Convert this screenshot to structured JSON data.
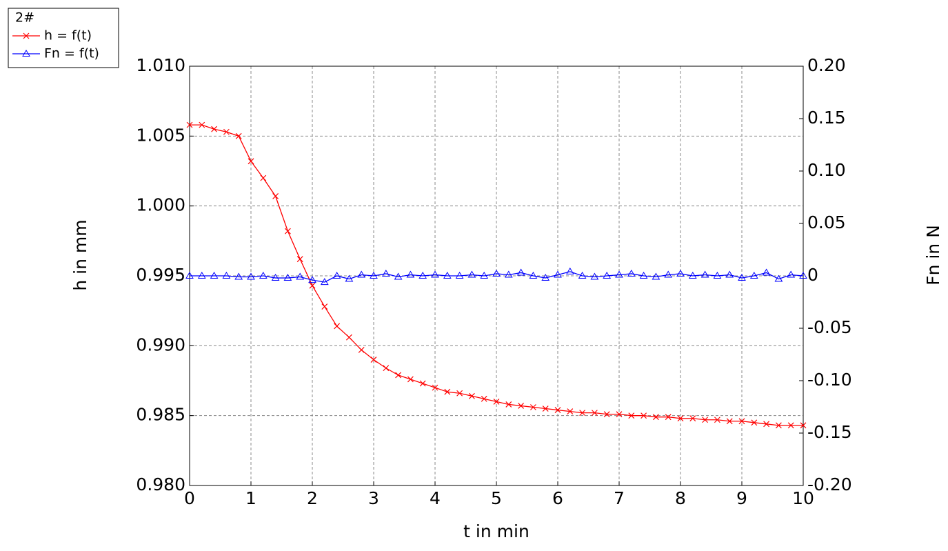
{
  "chart_data": {
    "type": "line",
    "legend_title": "2#",
    "legend_position": "upper left",
    "xlabel": "t in min",
    "ylabel": "h in mm",
    "y2label": "Fn in N",
    "grid": true,
    "x": [
      0,
      0.2,
      0.4,
      0.6,
      0.8,
      1,
      1.2,
      1.4,
      1.6,
      1.8,
      2,
      2.2,
      2.4,
      2.6,
      2.8,
      3,
      3.2,
      3.4,
      3.6,
      3.8,
      4,
      4.2,
      4.4,
      4.6,
      4.8,
      5,
      5.2,
      5.4,
      5.6,
      5.8,
      6,
      6.2,
      6.4,
      6.6,
      6.8,
      7,
      7.2,
      7.4,
      7.6,
      7.8,
      8,
      8.2,
      8.4,
      8.6,
      8.8,
      9,
      9.2,
      9.4,
      9.6,
      9.8,
      10
    ],
    "series": [
      {
        "name": "h = f(t)",
        "color": "#ff0000",
        "marker": "x",
        "axis": "y",
        "values": [
          1.0058,
          1.0058,
          1.0055,
          1.0053,
          1.005,
          1.0032,
          1.002,
          1.0007,
          0.9982,
          0.9962,
          0.9943,
          0.9928,
          0.9914,
          0.9906,
          0.9897,
          0.989,
          0.9884,
          0.9879,
          0.9876,
          0.9873,
          0.987,
          0.9867,
          0.9866,
          0.9864,
          0.9862,
          0.986,
          0.9858,
          0.9857,
          0.9856,
          0.9855,
          0.9854,
          0.9853,
          0.9852,
          0.9852,
          0.9851,
          0.9851,
          0.985,
          0.985,
          0.9849,
          0.9849,
          0.9848,
          0.9848,
          0.9847,
          0.9847,
          0.9846,
          0.9846,
          0.9845,
          0.9844,
          0.9843,
          0.9843,
          0.9843
        ]
      },
      {
        "name": "Fn = f(t)",
        "color": "#0000ff",
        "marker": "triangle",
        "axis": "y2",
        "values": [
          0,
          0,
          0,
          0,
          -0.001,
          -0.001,
          0,
          -0.002,
          -0.002,
          -0.001,
          -0.004,
          -0.006,
          0,
          -0.003,
          0.001,
          0,
          0.002,
          -0.001,
          0.001,
          0,
          0.001,
          0,
          0,
          0.001,
          0,
          0.002,
          0.001,
          0.003,
          0,
          -0.002,
          0.001,
          0.004,
          0,
          -0.001,
          0,
          0.001,
          0.002,
          0,
          -0.001,
          0.001,
          0.002,
          0,
          0.001,
          0,
          0.001,
          -0.002,
          0,
          0.003,
          -0.003,
          0.001,
          0
        ]
      }
    ],
    "xlim": [
      0,
      10
    ],
    "xticks": [
      0,
      1,
      2,
      3,
      4,
      5,
      6,
      7,
      8,
      9,
      10
    ],
    "ylim": [
      0.98,
      1.01
    ],
    "yticks": [
      {
        "value": 0.98,
        "label": "0.980"
      },
      0.985,
      {
        "value": 0.99,
        "label": "0.990"
      },
      0.995,
      {
        "value": 1,
        "label": "1.000"
      },
      1.005,
      {
        "value": 1.01,
        "label": "1.010"
      }
    ],
    "y2lim": [
      -0.2,
      0.2
    ],
    "y2ticks": [
      {
        "value": -0.2,
        "label": "-0.20"
      },
      -0.15,
      {
        "value": -0.1,
        "label": "-0.10"
      },
      -0.05,
      0,
      0.05,
      {
        "value": 0.1,
        "label": "0.10"
      },
      0.15,
      {
        "value": 0.2,
        "label": "0.20"
      }
    ]
  }
}
